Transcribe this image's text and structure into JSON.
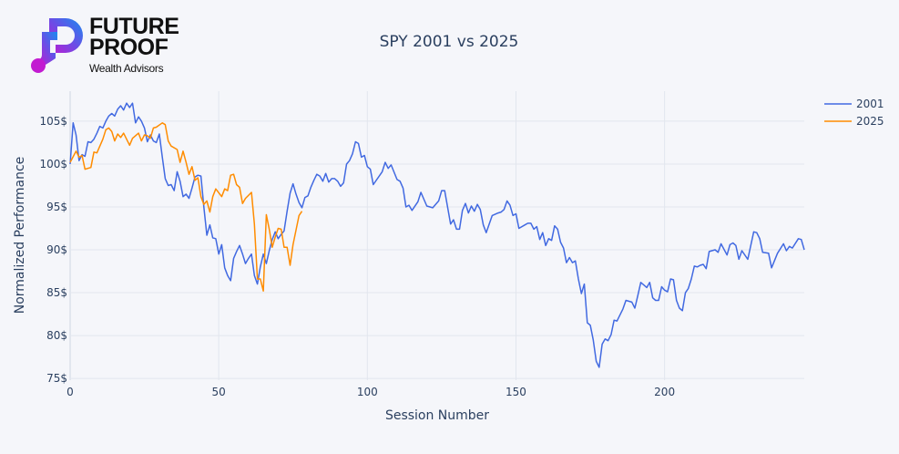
{
  "logo": {
    "line1": "FUTURE",
    "line2": "PROOF",
    "tagline": "Wealth Advisors"
  },
  "chart_data": {
    "type": "line",
    "title": "SPY 2001 vs 2025",
    "xlabel": "Session Number",
    "ylabel": "Normalized Performance",
    "xlim": [
      0,
      247
    ],
    "ylim": [
      74.8,
      108.5
    ],
    "x_ticks": [
      0,
      50,
      100,
      150,
      200
    ],
    "y_ticks": [
      75,
      80,
      85,
      90,
      95,
      100,
      105
    ],
    "y_tick_suffix": "$",
    "grid": true,
    "legend_position": "top-right",
    "series": [
      {
        "name": "2001",
        "color": "#4169e1",
        "x": [
          0,
          1,
          2,
          3,
          4,
          5,
          6,
          7,
          8,
          9,
          10,
          11,
          12,
          13,
          14,
          15,
          16,
          17,
          18,
          19,
          20,
          21,
          22,
          23,
          24,
          25,
          26,
          27,
          28,
          29,
          30,
          31,
          32,
          33,
          34,
          35,
          36,
          37,
          38,
          39,
          40,
          41,
          42,
          43,
          44,
          45,
          46,
          47,
          48,
          49,
          50,
          51,
          52,
          53,
          54,
          55,
          56,
          57,
          58,
          59,
          60,
          61,
          62,
          63,
          64,
          65,
          66,
          67,
          68,
          69,
          70,
          71,
          72,
          73,
          74,
          75,
          76,
          77,
          78,
          79,
          80,
          81,
          82,
          83,
          84,
          85,
          86,
          87,
          88,
          89,
          90,
          91,
          92,
          93,
          94,
          95,
          96,
          97,
          98,
          99,
          100,
          101,
          102,
          105,
          106,
          107,
          108,
          110,
          111,
          112,
          113,
          114,
          115,
          117,
          118,
          120,
          122,
          124,
          125,
          126,
          128,
          129,
          130,
          131,
          132,
          133,
          134,
          135,
          136,
          137,
          138,
          139,
          140,
          142,
          144,
          145,
          146,
          147,
          148,
          149,
          150,
          151,
          153,
          154,
          155,
          156,
          157,
          158,
          159,
          160,
          161,
          162,
          163,
          164,
          165,
          166,
          167,
          168,
          169,
          170,
          171,
          172,
          173,
          174,
          175,
          176,
          177,
          178,
          179,
          180,
          181,
          182,
          183,
          184,
          186,
          187,
          189,
          190,
          191,
          192,
          193,
          194,
          195,
          196,
          197,
          198,
          199,
          200,
          201,
          202,
          203,
          204,
          205,
          206,
          207,
          208,
          209,
          210,
          211,
          212,
          213,
          214,
          215,
          217,
          218,
          219,
          221,
          222,
          223,
          224,
          225,
          226,
          228,
          230,
          231,
          232,
          233,
          235,
          236,
          238,
          240,
          241,
          242,
          243,
          245,
          246,
          247
        ],
        "y": [
          100,
          104.8,
          103.4,
          100.4,
          101.1,
          100.9,
          102.6,
          102.5,
          102.9,
          103.6,
          104.4,
          104.2,
          105.0,
          105.6,
          105.9,
          105.6,
          106.4,
          106.8,
          106.3,
          107.1,
          106.6,
          107.1,
          104.8,
          105.5,
          105.0,
          104.2,
          102.6,
          103.4,
          102.7,
          102.5,
          103.5,
          100.8,
          98.3,
          97.5,
          97.6,
          96.9,
          99.1,
          98.0,
          96.2,
          96.5,
          96.0,
          97.2,
          98.5,
          98.7,
          98.6,
          95.0,
          91.7,
          92.9,
          91.4,
          91.3,
          89.5,
          90.6,
          87.9,
          87.0,
          86.4,
          89.0,
          89.8,
          90.5,
          89.5,
          88.4,
          89.0,
          89.5,
          87.0,
          86.0,
          88.0,
          89.5,
          88.4,
          89.9,
          91.2,
          92.1,
          91.3,
          91.8,
          92.2,
          94.5,
          96.6,
          97.7,
          96.5,
          95.5,
          94.9,
          96.1,
          96.3,
          97.3,
          98.1,
          98.8,
          98.6,
          98.0,
          98.9,
          97.9,
          98.3,
          98.3,
          98.0,
          97.4,
          97.8,
          100.0,
          100.4,
          101.2,
          102.6,
          102.4,
          100.8,
          101.0,
          99.7,
          99.4,
          97.6,
          99.1,
          100.2,
          99.5,
          99.9,
          98.2,
          98.0,
          97.2,
          95.0,
          95.2,
          94.6,
          95.6,
          96.7,
          95.1,
          94.9,
          95.7,
          96.9,
          96.9,
          93.0,
          93.5,
          92.4,
          92.4,
          94.6,
          95.4,
          94.3,
          95.1,
          94.5,
          95.3,
          94.7,
          92.9,
          92.0,
          94.0,
          94.3,
          94.4,
          94.7,
          95.7,
          95.2,
          94.0,
          94.2,
          92.5,
          92.9,
          93.1,
          93.1,
          92.4,
          92.7,
          91.2,
          92.0,
          90.5,
          91.3,
          91.1,
          92.8,
          92.4,
          90.9,
          90.2,
          88.5,
          89.1,
          88.5,
          88.7,
          86.6,
          84.9,
          86.0,
          81.5,
          81.2,
          79.5,
          77.0,
          76.3,
          79.0,
          79.6,
          79.4,
          80.1,
          81.8,
          81.7,
          83.1,
          84.1,
          83.9,
          83.2,
          84.7,
          86.2,
          85.9,
          85.6,
          86.2,
          84.4,
          84.1,
          84.1,
          85.7,
          85.3,
          85.1,
          86.6,
          86.5,
          84.1,
          83.2,
          82.9,
          85.0,
          85.5,
          86.6,
          88.1,
          88.0,
          88.2,
          88.3,
          87.8,
          89.8,
          90.0,
          89.7,
          90.7,
          89.4,
          90.6,
          90.8,
          90.5,
          88.9,
          89.9,
          88.9,
          92.1,
          92.0,
          91.3,
          89.7,
          89.6,
          87.9,
          89.6,
          90.7,
          89.9,
          90.4,
          90.2,
          91.3,
          91.2,
          90.0
        ]
      },
      {
        "name": "2025",
        "color": "#ff8c00",
        "x": [
          0,
          2,
          3,
          4,
          5,
          7,
          8,
          9,
          11,
          12,
          13,
          14,
          15,
          16,
          17,
          18,
          19,
          20,
          21,
          23,
          24,
          25,
          26,
          27,
          28,
          29,
          31,
          32,
          33,
          34,
          36,
          37,
          38,
          39,
          40,
          41,
          42,
          43,
          44,
          45,
          46,
          47,
          48,
          49,
          51,
          52,
          53,
          54,
          55,
          56,
          57,
          58,
          59,
          61,
          62,
          63,
          64,
          65,
          66,
          67,
          68,
          69,
          70,
          71,
          72,
          73,
          74,
          75,
          76,
          77,
          78
        ],
        "y": [
          100.2,
          101.5,
          100.8,
          101.0,
          99.4,
          99.6,
          101.4,
          101.3,
          102.9,
          104.0,
          104.2,
          103.8,
          102.7,
          103.5,
          103.1,
          103.6,
          102.9,
          102.2,
          103.0,
          103.6,
          102.7,
          103.4,
          103.3,
          103.0,
          104.2,
          104.3,
          104.8,
          104.6,
          102.7,
          102.1,
          101.7,
          100.2,
          101.5,
          100.2,
          98.8,
          99.7,
          98.1,
          98.4,
          96.2,
          95.3,
          95.7,
          94.4,
          96.2,
          97.1,
          96.2,
          97.1,
          96.9,
          98.7,
          98.8,
          97.6,
          97.3,
          95.4,
          96.0,
          96.7,
          93.0,
          86.6,
          86.6,
          85.2,
          94.1,
          92.4,
          90.3,
          91.5,
          92.5,
          92.4,
          90.3,
          90.3,
          88.2,
          90.6,
          92.3,
          94.0,
          94.5
        ]
      }
    ]
  }
}
